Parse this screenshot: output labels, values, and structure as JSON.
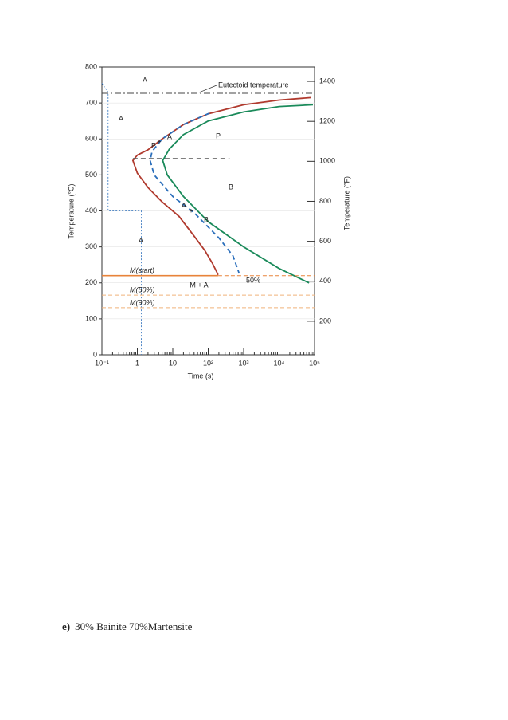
{
  "chart_data": {
    "type": "line",
    "xlabel": "Time (s)",
    "ylabel": "Temperature (°C)",
    "y2label": "Temperature (°F)",
    "xscale": "log",
    "grid": true,
    "xlim": [
      0.1,
      100000
    ],
    "xticks": [
      {
        "value": 0.1,
        "label": "10⁻¹"
      },
      1,
      10,
      {
        "value": 100,
        "label": "10²"
      },
      {
        "value": 1000,
        "label": "10³"
      },
      {
        "value": 10000,
        "label": "10⁴"
      },
      {
        "value": 100000,
        "label": "10⁵"
      }
    ],
    "ylim": [
      0,
      800
    ],
    "yticks": [
      0,
      100,
      200,
      300,
      400,
      500,
      600,
      700,
      800
    ],
    "y2lim": [
      32,
      1472
    ],
    "y2ticks": [
      200,
      400,
      600,
      800,
      1000,
      1200,
      1400
    ],
    "series": [
      {
        "color": "#b03a2e",
        "style": "solid",
        "x": [
          80000,
          10000,
          1000,
          100,
          20,
          5,
          2,
          1,
          0.75,
          1,
          2,
          5,
          15,
          40,
          80,
          130,
          175,
          190
        ],
        "values": [
          715,
          708,
          695,
          670,
          640,
          600,
          570,
          555,
          540,
          505,
          465,
          425,
          385,
          330,
          290,
          255,
          230,
          222
        ]
      },
      {
        "color": "#1a8a5a",
        "style": "solid",
        "x": [
          90000,
          10000,
          1000,
          100,
          20,
          8,
          5.2,
          7,
          20,
          100,
          1000,
          10000,
          70000
        ],
        "values": [
          695,
          690,
          675,
          650,
          612,
          572,
          540,
          500,
          440,
          370,
          300,
          240,
          200
        ]
      },
      {
        "color": "#2a6ebb",
        "style": "dashed",
        "x": [
          110,
          20,
          5,
          2.6,
          2.3,
          3,
          10,
          40,
          200,
          500,
          750
        ],
        "values": [
          672,
          640,
          600,
          565,
          540,
          500,
          440,
          395,
          325,
          275,
          226
        ]
      },
      {
        "color": "#2a6ebb",
        "style": "dotted",
        "x": [
          0.1,
          0.15,
          0.15,
          1.3,
          1.3
        ],
        "values": [
          755,
          730,
          400,
          400,
          0
        ]
      },
      {
        "color": "#555555",
        "style": "dashed",
        "x": [
          0.75,
          400
        ],
        "values": [
          545,
          545
        ]
      }
    ],
    "hlines": [
      {
        "label": "Eutectoid temperature",
        "value": 727,
        "color": "#444444"
      },
      {
        "label": "M(start)",
        "value": 220,
        "color": "#e8833a"
      },
      {
        "label": "M(50%)",
        "value": 166,
        "color": "#f0b27a"
      },
      {
        "label": "M(90%)",
        "value": 131,
        "color": "#f0b27a"
      }
    ],
    "annotations": [
      "A",
      "A",
      "P",
      "B",
      "A",
      "M + A",
      "50%",
      "P",
      "+",
      "A",
      "A",
      "+",
      "B"
    ]
  },
  "text": {
    "label": "e)",
    "body": "30% Bainite 70%Martensite"
  }
}
